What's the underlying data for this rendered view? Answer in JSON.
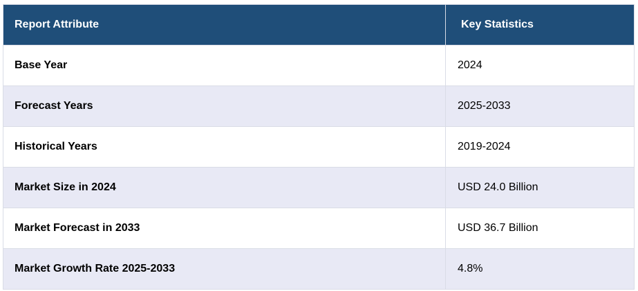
{
  "table": {
    "headers": [
      "Report Attribute",
      "Key Statistics"
    ],
    "rows": [
      [
        "Base Year",
        "2024"
      ],
      [
        "Forecast Years",
        "2025-2033"
      ],
      [
        "Historical Years",
        "2019-2024"
      ],
      [
        "Market Size in 2024",
        "USD 24.0 Billion"
      ],
      [
        "Market Forecast in 2033",
        "USD 36.7 Billion"
      ],
      [
        "Market Growth Rate 2025-2033",
        "4.8%"
      ]
    ]
  },
  "colors": {
    "header_bg": "#1f4e79",
    "header_text": "#ffffff",
    "row_alt_bg": "#e8e9f5",
    "border": "#d9dce6"
  }
}
